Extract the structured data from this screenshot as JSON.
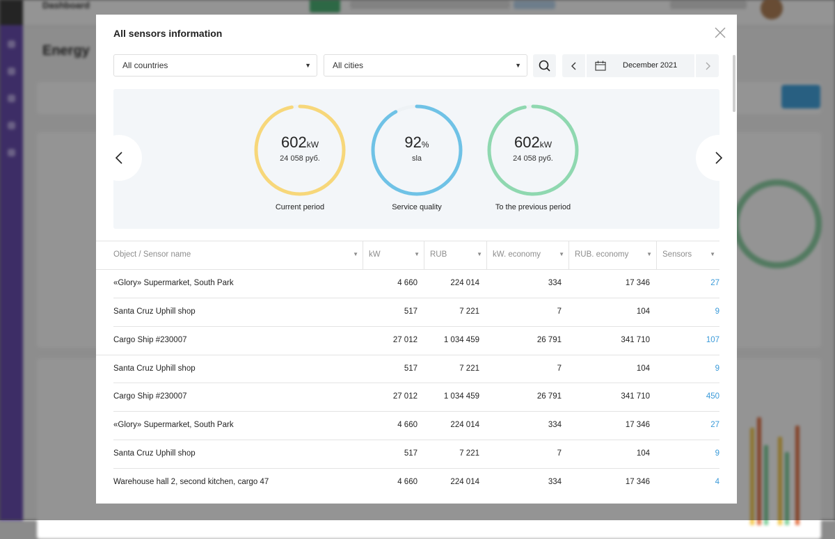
{
  "background": {
    "breadcrumb": "Dashboard",
    "page_title": "Energy"
  },
  "modal": {
    "title": "All sensors information",
    "close_icon": "close-icon"
  },
  "filters": {
    "country": "All countries",
    "city": "All cities",
    "search_icon": "search-icon",
    "calendar_icon": "calendar-icon",
    "period": "December 2021"
  },
  "gauges": [
    {
      "value": "602",
      "unit": "kW",
      "sub": "24 058 руб.",
      "caption": "Current period",
      "progress": 0.97,
      "color": "#f7d77a"
    },
    {
      "value": "92",
      "unit": "%",
      "sub": "sla",
      "caption": "Service quality",
      "progress": 0.92,
      "color": "#6fc2e6"
    },
    {
      "value": "602",
      "unit": "kW",
      "sub": "24 058 руб.",
      "caption": "To the previous period",
      "progress": 0.97,
      "color": "#8fd8b0"
    }
  ],
  "table": {
    "columns": [
      "Object / Sensor name",
      "kW",
      "RUB",
      "kW. economy",
      "RUB. economy",
      "Sensors"
    ],
    "rows": [
      {
        "name": "«Glory» Supermarket, South Park",
        "kw": "4 660",
        "rub": "224 014",
        "kw_eco": "334",
        "rub_eco": "17 346",
        "sensors": "27"
      },
      {
        "name": "Santa Cruz Uphill shop",
        "kw": "517",
        "rub": "7 221",
        "kw_eco": "7",
        "rub_eco": "104",
        "sensors": "9"
      },
      {
        "name": "Cargo Ship #230007",
        "kw": "27 012",
        "rub": "1 034 459",
        "kw_eco": "26 791",
        "rub_eco": "341 710",
        "sensors": "107"
      },
      {
        "name": "Santa Cruz Uphill shop",
        "kw": "517",
        "rub": "7 221",
        "kw_eco": "7",
        "rub_eco": "104",
        "sensors": "9"
      },
      {
        "name": "Cargo Ship #230007",
        "kw": "27 012",
        "rub": "1 034 459",
        "kw_eco": "26 791",
        "rub_eco": "341 710",
        "sensors": "450"
      },
      {
        "name": "«Glory» Supermarket, South Park",
        "kw": "4 660",
        "rub": "224 014",
        "kw_eco": "334",
        "rub_eco": "17 346",
        "sensors": "27"
      },
      {
        "name": "Santa Cruz Uphill shop",
        "kw": "517",
        "rub": "7 221",
        "kw_eco": "7",
        "rub_eco": "104",
        "sensors": "9"
      },
      {
        "name": "Warehouse hall 2, second kitchen, cargo 47",
        "kw": "4 660",
        "rub": "224 014",
        "kw_eco": "334",
        "rub_eco": "17 346",
        "sensors": "4"
      }
    ]
  }
}
